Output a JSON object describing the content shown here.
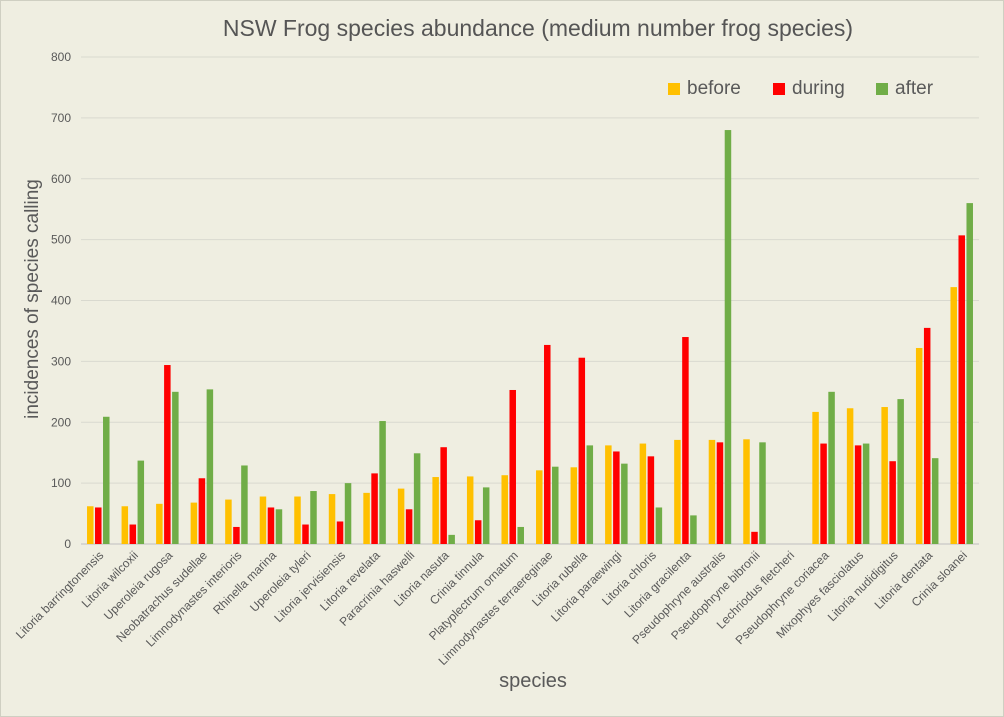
{
  "chart_data": {
    "type": "bar",
    "title": "NSW Frog species abundance (medium number frog species)",
    "xlabel": "species",
    "ylabel": "incidences of species calling",
    "ylim": [
      0,
      800
    ],
    "yticks": [
      0,
      100,
      200,
      300,
      400,
      500,
      600,
      700,
      800
    ],
    "grid": true,
    "legend_position": "top-right",
    "categories": [
      "Litoria barringtonensis",
      "Litoria wilcoxii",
      "Uperoleia rugosa",
      "Neobatrachus sudellae",
      "Limnodynastes interioris",
      "Rhinella marina",
      "Uperoleia tyleri",
      "Litoria jervisiensis",
      "Litoria revelata",
      "Paracrinia haswelli",
      "Litoria nasuta",
      "Crinia tinnula",
      "Platyplectrum ornatum",
      "Limnodynastes terraereginae",
      "Litoria rubella",
      "Litoria paraewingi",
      "Litoria chloris",
      "Litoria gracilenta",
      "Pseudophryne australis",
      "Pseudophryne bibronii",
      "Lechriodus fletcheri",
      "Pseudophryne coriacea",
      "Mixophyes fasciolatus",
      "Litoria nudidigitus",
      "Litoria dentata",
      "Crinia sloanei"
    ],
    "series": [
      {
        "name": "before",
        "color": "#ffc000",
        "values": [
          62,
          62,
          66,
          68,
          73,
          78,
          78,
          82,
          84,
          91,
          110,
          111,
          113,
          121,
          126,
          162,
          165,
          171,
          171,
          172,
          0,
          217,
          223,
          225,
          322,
          422
        ]
      },
      {
        "name": "during",
        "color": "#ff0000",
        "values": [
          60,
          32,
          294,
          108,
          28,
          60,
          32,
          37,
          116,
          57,
          159,
          39,
          253,
          327,
          306,
          152,
          144,
          340,
          167,
          20,
          0,
          165,
          162,
          136,
          355,
          507
        ]
      },
      {
        "name": "after",
        "color": "#70ad47",
        "values": [
          209,
          137,
          250,
          254,
          129,
          57,
          87,
          100,
          202,
          149,
          15,
          93,
          28,
          127,
          162,
          132,
          60,
          47,
          680,
          167,
          0,
          250,
          165,
          238,
          141,
          560
        ]
      }
    ]
  }
}
